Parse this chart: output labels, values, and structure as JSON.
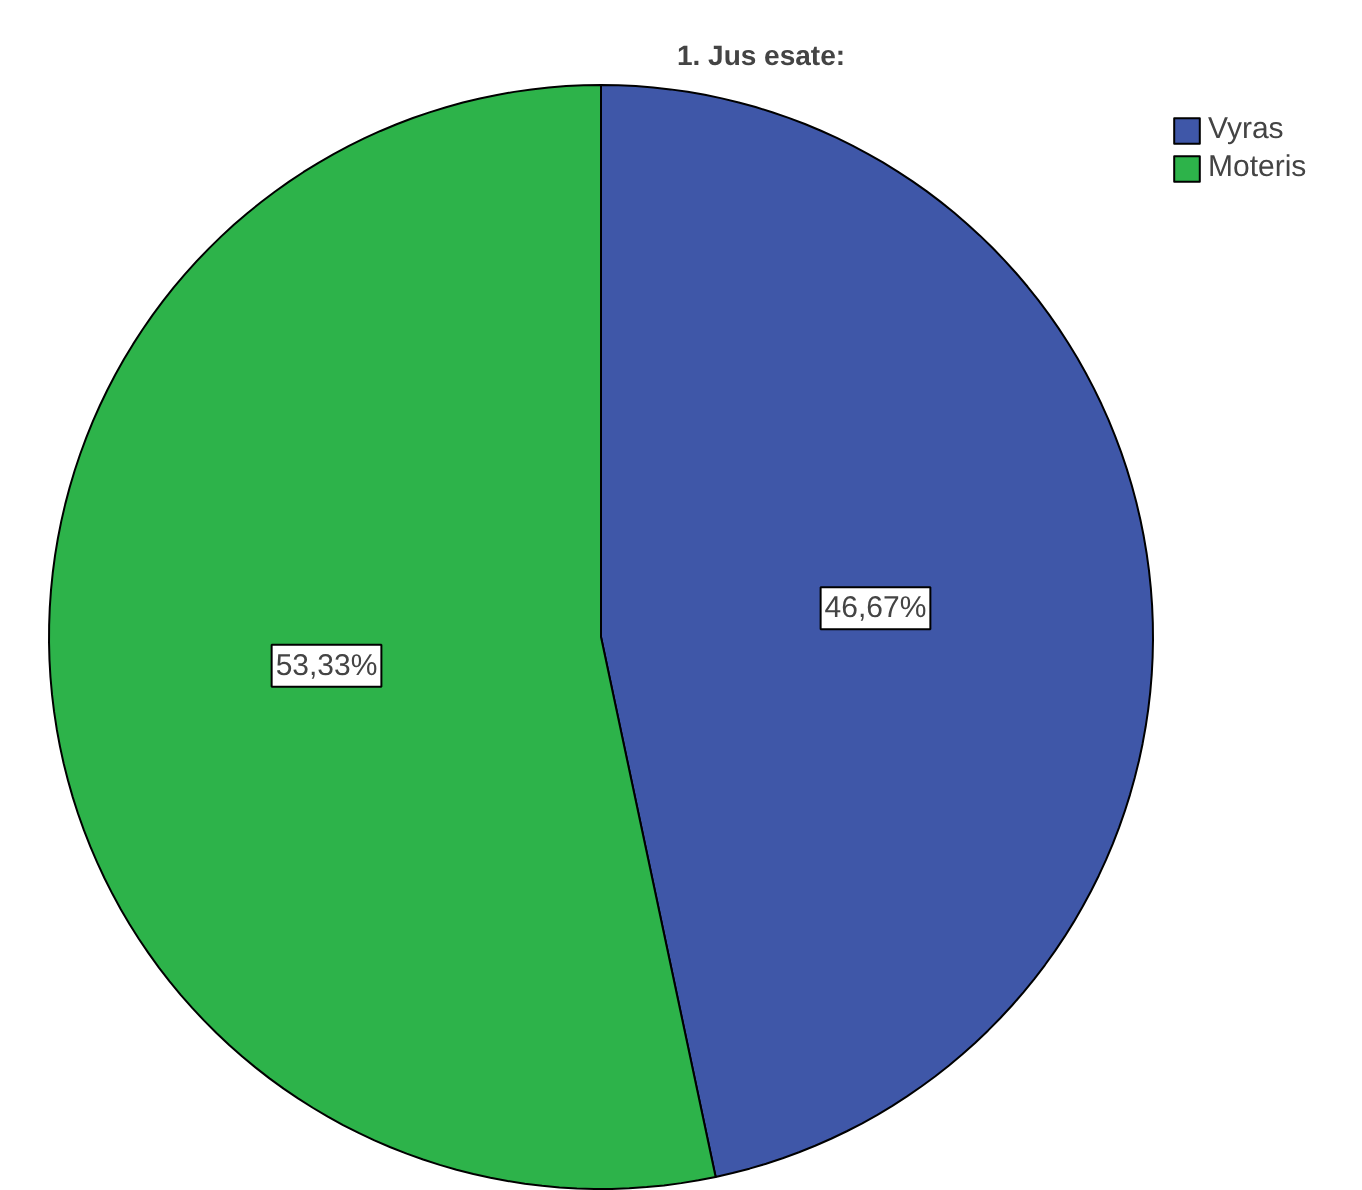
{
  "chart_data": {
    "type": "pie",
    "title": "1. Jus esate:",
    "categories": [
      "Vyras",
      "Moteris"
    ],
    "values": [
      46.67,
      53.33
    ],
    "colors": [
      "#3f57a8",
      "#2db34a"
    ],
    "value_labels": [
      "46,67%",
      "53,33%"
    ],
    "legend": "top right"
  }
}
